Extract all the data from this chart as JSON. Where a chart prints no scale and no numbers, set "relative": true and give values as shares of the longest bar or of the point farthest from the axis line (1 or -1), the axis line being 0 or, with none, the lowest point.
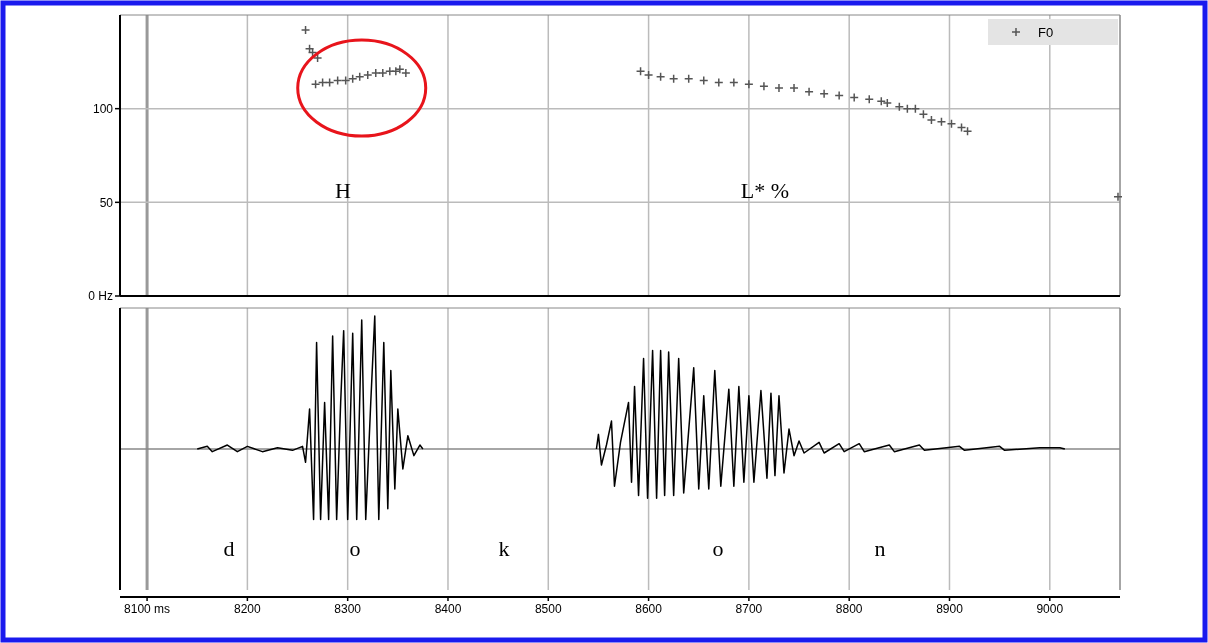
{
  "chart_data": [
    {
      "type": "scatter",
      "xlim": [
        8073,
        9070
      ],
      "ylim": [
        0,
        150
      ],
      "yticks": [
        {
          "value": 0,
          "label": "0 Hz"
        },
        50,
        100
      ],
      "xticks": [
        8100,
        8200,
        8300,
        8400,
        8500,
        8600,
        8700,
        8800,
        8900,
        9000
      ],
      "tick_labels": "y",
      "grid": true,
      "legend": "top right",
      "marker": "cross",
      "series": [
        {
          "name": "F0",
          "color": "#555555",
          "x": [
            8258,
            8262,
            8265,
            8270,
            8268,
            8275,
            8282,
            8290,
            8298,
            8305,
            8312,
            8320,
            8328,
            8335,
            8342,
            8348,
            8352,
            8358,
            8592,
            8600,
            8612,
            8625,
            8640,
            8655,
            8670,
            8685,
            8700,
            8715,
            8730,
            8745,
            8760,
            8775,
            8790,
            8805,
            8820,
            8832,
            8838,
            8850,
            8858,
            8866,
            8874,
            8882,
            8892,
            8902,
            8912,
            8918,
            9068
          ],
          "values": [
            142,
            132,
            130,
            127,
            113,
            114,
            114,
            115,
            115,
            116,
            117,
            118,
            119,
            119,
            120,
            120,
            121,
            119,
            120,
            118,
            117,
            116,
            116,
            115,
            114,
            114,
            113,
            112,
            111,
            111,
            109,
            108,
            107,
            106,
            105,
            104,
            103,
            101,
            100,
            100,
            97,
            94,
            93,
            92,
            90,
            88,
            53
          ]
        }
      ],
      "ref_lines": [
        {
          "axis": "x",
          "value": 8100,
          "color": "#999999"
        }
      ],
      "annotations": [
        "H",
        "L* %"
      ]
    },
    {
      "type": "line",
      "relative": true,
      "xlim": [
        8073,
        9070
      ],
      "xticks": [
        {
          "value": 8100,
          "label": "8100 ms"
        },
        8200,
        8300,
        8400,
        8500,
        8600,
        8700,
        8800,
        8900,
        9000
      ],
      "tick_labels": "x",
      "grid": "x",
      "series": [
        {
          "color": "#000000",
          "x": [
            8150,
            8160,
            8165,
            8180,
            8190,
            8200,
            8215,
            8230,
            8245,
            8255,
            8258,
            8262,
            8266,
            8269,
            8273,
            8277,
            8281,
            8285,
            8289,
            8293,
            8296,
            8300,
            8305,
            8309,
            8314,
            8318,
            8323,
            8327,
            8331,
            8336,
            8340,
            8343,
            8347,
            8350,
            8355,
            8360,
            8366,
            8372,
            8375,
            8460,
            8548,
            8550,
            8553,
            8558,
            8563,
            8566,
            8572,
            8580,
            8583,
            8586,
            8590,
            8595,
            8599,
            8604,
            8608,
            8612,
            8616,
            8620,
            8625,
            8630,
            8635,
            8645,
            8650,
            8655,
            8660,
            8666,
            8672,
            8680,
            8685,
            8690,
            8695,
            8700,
            8705,
            8712,
            8718,
            8722,
            8726,
            8730,
            8735,
            8740,
            8745,
            8750,
            8755,
            8770,
            8775,
            8790,
            8795,
            8810,
            8815,
            8840,
            8845,
            8870,
            8875,
            8910,
            8915,
            8950,
            8955,
            8990,
            9010,
            9015
          ],
          "values": [
            0,
            0.02,
            -0.02,
            0.03,
            -0.02,
            0.02,
            -0.02,
            0.01,
            -0.01,
            0.02,
            -0.1,
            0.3,
            -0.53,
            0.8,
            -0.53,
            0.35,
            -0.53,
            0.85,
            -0.53,
            0.35,
            0.89,
            -0.53,
            0.87,
            -0.53,
            0.97,
            -0.53,
            0.35,
            1,
            -0.53,
            0.8,
            -0.45,
            0.59,
            -0.3,
            0.3,
            -0.15,
            0.1,
            -0.05,
            0.03,
            0,
            null,
            0,
            0.11,
            -0.12,
            0.03,
            0.21,
            -0.28,
            0.05,
            0.35,
            -0.25,
            0.47,
            -0.35,
            0.68,
            -0.37,
            0.74,
            -0.37,
            0.74,
            -0.35,
            0.73,
            -0.35,
            0.68,
            -0.33,
            0.61,
            -0.3,
            0.4,
            -0.3,
            0.59,
            -0.28,
            0.45,
            -0.28,
            0.47,
            -0.25,
            0.4,
            -0.25,
            0.44,
            -0.22,
            0.42,
            -0.2,
            0.4,
            -0.18,
            0.15,
            -0.05,
            0.06,
            -0.03,
            0.05,
            -0.03,
            0.04,
            -0.02,
            0.04,
            -0.02,
            0.03,
            -0.02,
            0.03,
            -0.01,
            0.02,
            -0.01,
            0.02,
            -0.01,
            0.01,
            0.01,
            0
          ]
        }
      ],
      "ref_lines": [
        {
          "axis": "x",
          "value": 8100,
          "color": "#999999"
        }
      ],
      "annotations": [
        "d",
        "o",
        "k",
        "o",
        "n"
      ]
    }
  ]
}
